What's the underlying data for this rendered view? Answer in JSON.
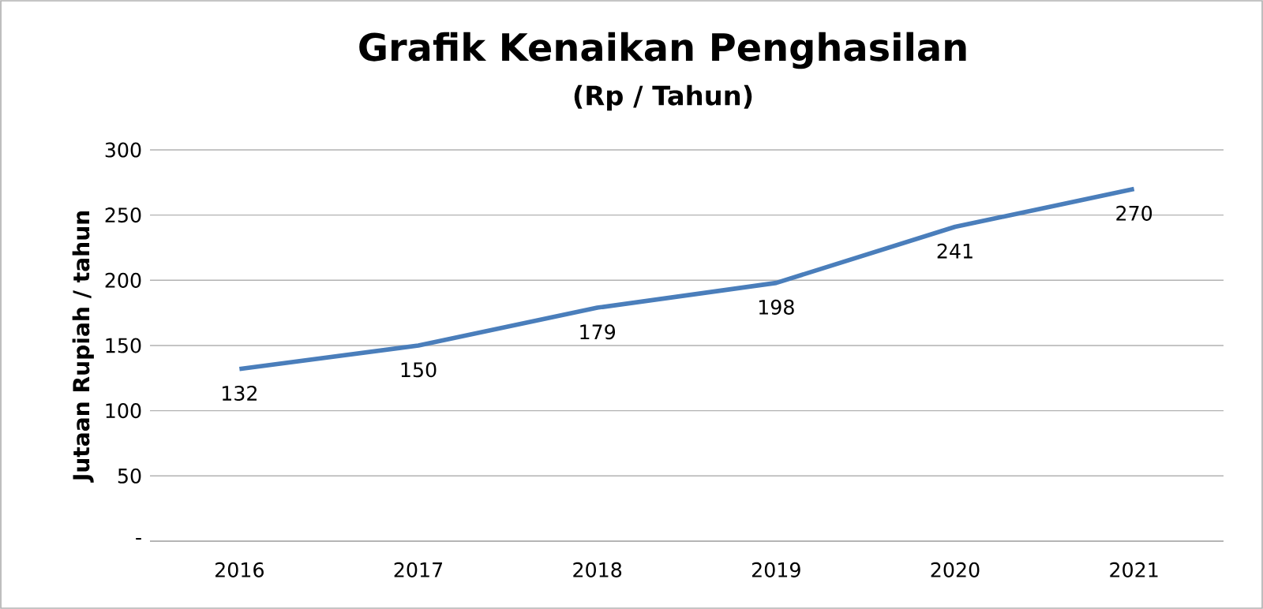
{
  "chart_data": {
    "type": "line",
    "title": "Grafik Kenaikan Penghasilan",
    "subtitle": "(Rp / Tahun)",
    "ylabel": "Jutaan Rupiah / tahun",
    "categories": [
      "2016",
      "2017",
      "2018",
      "2019",
      "2020",
      "2021"
    ],
    "series": [
      {
        "color": "#4a7ebb",
        "values": [
          132,
          150,
          179,
          198,
          241,
          270
        ]
      }
    ],
    "ylim": [
      0,
      300
    ],
    "yticks": [
      {
        "value": 0,
        "label": "-"
      },
      50,
      100,
      150,
      200,
      250,
      300
    ],
    "grid": "y",
    "data_labels": true,
    "marker": "none",
    "line_style": "solid",
    "legend": false
  }
}
